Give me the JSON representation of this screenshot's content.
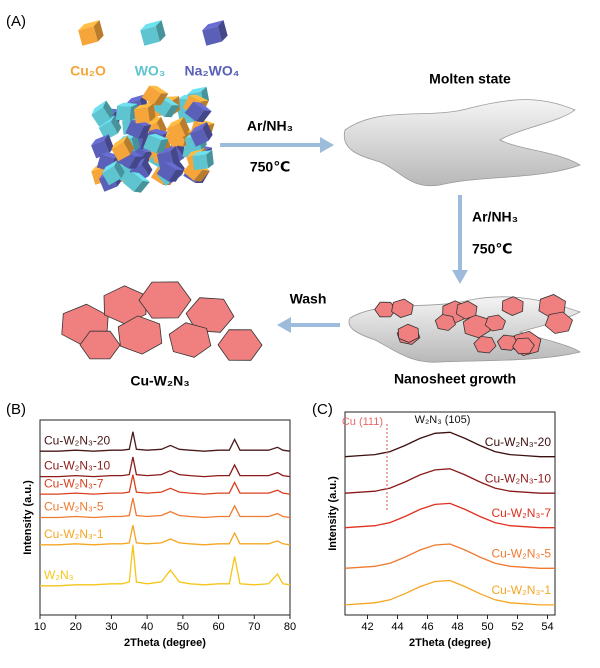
{
  "panel_labels": [
    "(A)",
    "(B)",
    "(C)"
  ],
  "scheme": {
    "precursors": [
      {
        "label": "Cu₂O",
        "color": "#f5a53a"
      },
      {
        "label": "WO₃",
        "color": "#5ec4d0"
      },
      {
        "label": "Na₂WO₄",
        "color": "#5a5fb8"
      }
    ],
    "step1": {
      "gas": "Ar/NH₃",
      "temp": "750℃"
    },
    "molten": "Molten state",
    "step2": {
      "gas": "Ar/NH₃",
      "temp": "750℃"
    },
    "growth": "Nanosheet growth",
    "wash": "Wash",
    "product": "Cu-W₂N₃"
  },
  "chart_data": [
    {
      "type": "line",
      "xlabel": "2Theta (degree)",
      "ylabel": "Intensity (a.u.)",
      "xlim": [
        10,
        80
      ],
      "xticks": [
        10,
        20,
        30,
        40,
        50,
        60,
        70,
        80
      ],
      "ylim": [
        0,
        100
      ],
      "x": [
        10,
        15,
        20,
        25,
        30,
        33,
        35,
        36,
        37,
        40,
        44,
        46.5,
        49,
        52,
        56,
        60,
        63,
        64.5,
        66,
        70,
        74,
        76.5,
        78,
        80
      ],
      "series": [
        {
          "name": "Cu-W₂N₃-20",
          "color": "#4a1a1a",
          "values": [
            84,
            84,
            84.5,
            84,
            84.5,
            84.5,
            85,
            94,
            85,
            84.5,
            85,
            87,
            85,
            84.5,
            84,
            84.5,
            84.5,
            90,
            84.5,
            84.5,
            84.5,
            86,
            84.5,
            84
          ]
        },
        {
          "name": "Cu-W₂N₃-10",
          "color": "#8b1a1a",
          "values": [
            71,
            71,
            71.5,
            71,
            71.5,
            71.5,
            72,
            81,
            72,
            71.5,
            72,
            74,
            72,
            71.5,
            71,
            71.5,
            71.5,
            77,
            71.5,
            71.5,
            71.5,
            73,
            71.5,
            71
          ]
        },
        {
          "name": "Cu-W₂N₃-7",
          "color": "#d9411e",
          "values": [
            62,
            62,
            62.5,
            62,
            62.5,
            62.5,
            63,
            72,
            63,
            62.5,
            63,
            65,
            63,
            62.5,
            62,
            62.5,
            62.5,
            68,
            62.5,
            62.5,
            62.5,
            64,
            62.5,
            62
          ]
        },
        {
          "name": "Cu-W₂N₃-5",
          "color": "#f07a30",
          "values": [
            50,
            50,
            50.5,
            50,
            50.5,
            50.5,
            51,
            60,
            51,
            50.5,
            51,
            53,
            51,
            50.5,
            50,
            50.5,
            50.5,
            56,
            50.5,
            50.5,
            50.5,
            52,
            50.5,
            50
          ]
        },
        {
          "name": "Cu-W₂N₃-1",
          "color": "#f5a623",
          "values": [
            36,
            36,
            36.5,
            36,
            36.5,
            36.5,
            37,
            46,
            37,
            36.5,
            37,
            39,
            37,
            36.5,
            36,
            36.5,
            36.5,
            42,
            36.5,
            36.5,
            36.5,
            38,
            36.5,
            36
          ]
        },
        {
          "name": "W₂N₃",
          "color": "#f5c518",
          "values": [
            15,
            15,
            15.5,
            15.5,
            16,
            16,
            17,
            36,
            17,
            16,
            17,
            23,
            17,
            16,
            15.5,
            16,
            16,
            30,
            16,
            15.5,
            16,
            21,
            16,
            15.5
          ]
        }
      ]
    },
    {
      "type": "line",
      "xlabel": "2Theta (degree)",
      "ylabel": "Intensity (a.u.)",
      "xlim": [
        40.5,
        54.5
      ],
      "xticks": [
        42,
        44,
        46,
        48,
        50,
        52,
        54
      ],
      "ylim": [
        0,
        100
      ],
      "x": [
        40.5,
        41.5,
        42.5,
        43.5,
        44.5,
        45.5,
        46.5,
        47.5,
        48.5,
        49.5,
        50.5,
        51.5,
        52.5,
        53.5,
        54.5
      ],
      "series": [
        {
          "name": "Cu-W₂N₃-20",
          "color": "#3d1010",
          "values": [
            78,
            78.5,
            79,
            80.5,
            83.5,
            87,
            89.5,
            90,
            87,
            83.5,
            80.5,
            79,
            78.5,
            78,
            78
          ]
        },
        {
          "name": "Cu-W₂N₃-10",
          "color": "#8b1a1a",
          "values": [
            60,
            60.5,
            61,
            62.5,
            65.5,
            69,
            71.5,
            72,
            69,
            65.5,
            62.5,
            61,
            60.5,
            60,
            60
          ]
        },
        {
          "name": "Cu-W₂N₃-7",
          "color": "#e0301e",
          "values": [
            43,
            43.5,
            44,
            45.5,
            48.5,
            52,
            54.5,
            55,
            52,
            48.5,
            45.5,
            44,
            43.5,
            43,
            43
          ]
        },
        {
          "name": "Cu-W₂N₃-5",
          "color": "#f07a30",
          "values": [
            23,
            23.5,
            24,
            25.5,
            28.5,
            32,
            34.5,
            35,
            32,
            28.5,
            25.5,
            24,
            23.5,
            23,
            23
          ]
        },
        {
          "name": "Cu-W₂N₃-1",
          "color": "#f5a623",
          "values": [
            5,
            5.5,
            6,
            7.5,
            10.5,
            14,
            16.5,
            17,
            14,
            10.5,
            7.5,
            6,
            5.5,
            5,
            5
          ]
        }
      ],
      "annotations": [
        {
          "text": "Cu (111)",
          "x": 43.3,
          "color": "#e66a6a"
        },
        {
          "text": "W₂N₃ (105)",
          "x": 47,
          "color": "#111111"
        }
      ]
    }
  ]
}
